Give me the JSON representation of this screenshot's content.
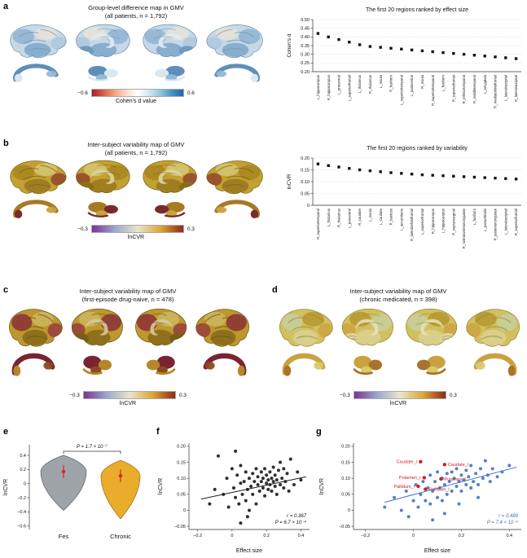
{
  "figure": {
    "background": "#ffffff"
  },
  "panels": {
    "a": {
      "label": "a",
      "title": "Group-level difference map in GMV",
      "subtitle": "(all patients, n = 1,792)",
      "colorbar": {
        "min_label": "−0.6",
        "max_label": "0.6",
        "caption": "Cohen's d value",
        "gradient": [
          "#b2182b",
          "#d6604d",
          "#f4a582",
          "#fddbc7",
          "#ffffff",
          "#d1e5f0",
          "#92c5de",
          "#4393c3",
          "#2166ac"
        ]
      },
      "palette": {
        "b1": "#c6d8e6",
        "b2": "#8fb4d2",
        "b3": "#e8e4d9",
        "b4": "#6d9cc4",
        "b5": "#a9c6db",
        "edge": "#5c7f9e",
        "sulci": "#7595ad",
        "cc": "#e4ecf3",
        "s1": "#5d8fba",
        "s2": "#dbe7f0",
        "s3": "#94b9d6"
      }
    },
    "b": {
      "label": "b",
      "title": "Inter-subject variability map of GMV",
      "subtitle": "(all patients, n = 1,792)",
      "colorbar": {
        "min_label": "−0.3",
        "max_label": "0.3",
        "caption": "lnCVR",
        "gradient": [
          "#7b3294",
          "#9aa7cf",
          "#e9e5c9",
          "#dfa53a",
          "#8c2d14"
        ]
      },
      "palette": {
        "b1": "#c2a032",
        "b2": "#a8861f",
        "b3": "#d6c878",
        "b4": "#8f6f1a",
        "b5": "#8c3b2a",
        "edge": "#6b5512",
        "sulci": "#7a611a",
        "cc": "#ddd5a2",
        "s1": "#a87a22",
        "s2": "#7a2a2a",
        "s3": "#c9a23f"
      }
    },
    "c": {
      "label": "c",
      "title": "Inter-subject variability map of GMV",
      "subtitle": "(first-episode drug-naive, n = 478)",
      "colorbar": {
        "min_label": "−0.3",
        "max_label": "0.3",
        "caption": "lnCVR",
        "gradient": [
          "#7b3294",
          "#9aa7cf",
          "#e9e5c9",
          "#dfa53a",
          "#8c2d14"
        ]
      },
      "palette": {
        "b1": "#bd982c",
        "b2": "#8c2f3b",
        "b3": "#cdb964",
        "b4": "#7a5f15",
        "b5": "#94313f",
        "edge": "#5f4a10",
        "sulci": "#6b5512",
        "cc": "#d6c89a",
        "s1": "#7a2433",
        "s2": "#b5862a",
        "s3": "#8c4a1f"
      }
    },
    "d": {
      "label": "d",
      "title": "Inter-subject variability map of GMV",
      "subtitle": "(chronic medicated, n = 398)",
      "colorbar": {
        "min_label": "−0.3",
        "max_label": "0.3",
        "caption": "lnCVR",
        "gradient": [
          "#7b3294",
          "#9aa7cf",
          "#e9e5c9",
          "#dfa53a",
          "#8c2d14"
        ]
      },
      "palette": {
        "b1": "#d2c05e",
        "b2": "#c6cf9e",
        "b3": "#b5942e",
        "b4": "#ddd49e",
        "b5": "#c9a23f",
        "edge": "#8a7a2e",
        "sulci": "#9a8a3a",
        "cc": "#e6e0b4",
        "s1": "#c9a23f",
        "s2": "#a8742a",
        "s3": "#d8c96a"
      }
    },
    "e": {
      "label": "e"
    },
    "f": {
      "label": "f"
    },
    "g": {
      "label": "g"
    }
  },
  "chart_data": [
    {
      "id": "a_rank",
      "type": "scatter",
      "marker": "square",
      "title": "The first 20 regions ranked by effect size",
      "ylabel": "Cohen's d",
      "ylim": [
        0.2,
        0.5
      ],
      "yticks": [
        0.2,
        0.25,
        0.3,
        0.35,
        0.4,
        0.45,
        0.5
      ],
      "grid": true,
      "point_color": "#141414",
      "categories": [
        "L_hippocampus",
        "R_hippocampus",
        "L_precentral",
        "L_superiorfrontal",
        "L_thalamus",
        "R_thalamus",
        "L_insula",
        "R_fusiform",
        "L_superiortemporal",
        "L_postcentral",
        "R_insula",
        "R_superiortemporal",
        "L_fusiform",
        "R_superiorfrontal",
        "R_inferiortemporal",
        "R_middletemporal",
        "L_amygdala",
        "R_medialorbitofrontal",
        "L_lateraloccipital",
        "R_lateraloccipital"
      ],
      "values": [
        0.42,
        0.4,
        0.385,
        0.37,
        0.355,
        0.345,
        0.34,
        0.335,
        0.33,
        0.325,
        0.32,
        0.315,
        0.31,
        0.305,
        0.3,
        0.295,
        0.29,
        0.285,
        0.28,
        0.275
      ]
    },
    {
      "id": "b_rank",
      "type": "scatter",
      "marker": "square",
      "title": "The first 20 regions ranked by variability",
      "ylabel": "lnCVR",
      "ylim": [
        0,
        0.2
      ],
      "yticks": [
        0,
        0.05,
        0.1,
        0.15,
        0.2
      ],
      "grid": true,
      "point_color": "#141414",
      "categories": [
        "R_superiortemporal",
        "L_thalamus",
        "R_thalamus",
        "L_precentral",
        "R_caudate",
        "L_insula",
        "L_caudate",
        "R_banksts",
        "L_accumbens",
        "R_lateralorbitofrontal",
        "L_superiorfrontal",
        "R_hippocampus",
        "L_hippocampus",
        "R_supramarginal",
        "R_rostralanteriorcingulate",
        "L_fusiform",
        "L_parsorbitalis",
        "R_posteriorcingulate",
        "L_lateraloccipital",
        "R_superiorfrontal"
      ],
      "values": [
        0.175,
        0.168,
        0.162,
        0.156,
        0.15,
        0.146,
        0.142,
        0.138,
        0.135,
        0.132,
        0.129,
        0.127,
        0.125,
        0.123,
        0.121,
        0.119,
        0.117,
        0.115,
        0.113,
        0.111
      ]
    },
    {
      "id": "e_violin",
      "type": "violin",
      "ylabel": "lnCVR",
      "ylim": [
        -0.65,
        0.55
      ],
      "yticks": [
        0.4,
        0.2,
        0,
        -0.2,
        -0.4,
        -0.6
      ],
      "p_label": "P = 1.7 × 10⁻⁷",
      "groups": [
        {
          "label": "Fes",
          "color": "#9aa0a6",
          "edge": "#555555",
          "y_top": 0.4,
          "y_bottom": -0.38,
          "y_peak": 0.17,
          "mean": 0.17,
          "err": 0.09
        },
        {
          "label": "Chronic",
          "color": "#e8a820",
          "edge": "#8a6a10",
          "y_top": 0.33,
          "y_bottom": -0.5,
          "y_peak": 0.11,
          "mean": 0.11,
          "err": 0.09
        }
      ],
      "mean_color": "#d62728"
    },
    {
      "id": "f_scatter",
      "type": "scatter",
      "xlabel": "Effect size",
      "ylabel": "lnCVR",
      "xlim": [
        -0.25,
        0.45
      ],
      "ylim": [
        -0.06,
        0.21
      ],
      "xticks": [
        -0.2,
        0,
        0.2,
        0.4
      ],
      "yticks": [
        -0.05,
        0,
        0.05,
        0.1,
        0.15,
        0.2
      ],
      "r_label": "r = 0.367",
      "p_label": "P = 6.7 × 10⁻⁴",
      "accent": "#111111",
      "point_color": "#1a1a1a",
      "line": {
        "x1": -0.18,
        "y1": 0.035,
        "x2": 0.43,
        "y2": 0.105,
        "color": "#1a1a1a"
      },
      "points": [
        [
          -0.13,
          0.02
        ],
        [
          -0.1,
          0.065
        ],
        [
          -0.08,
          0.17
        ],
        [
          -0.05,
          0.05
        ],
        [
          -0.03,
          0.1
        ],
        [
          -0.02,
          0.01
        ],
        [
          0.0,
          0.13
        ],
        [
          0.01,
          0.07
        ],
        [
          0.02,
          0.04
        ],
        [
          0.02,
          0.185
        ],
        [
          0.03,
          0.11
        ],
        [
          0.04,
          0.02
        ],
        [
          0.05,
          0.085
        ],
        [
          0.05,
          0.14
        ],
        [
          0.06,
          0.05
        ],
        [
          0.07,
          0.09
        ],
        [
          0.08,
          0.03
        ],
        [
          0.08,
          0.12
        ],
        [
          0.09,
          0.065
        ],
        [
          0.1,
          0.1
        ],
        [
          0.1,
          0.0
        ],
        [
          0.11,
          0.075
        ],
        [
          0.12,
          0.115
        ],
        [
          0.12,
          0.05
        ],
        [
          0.13,
          0.09
        ],
        [
          0.14,
          0.13
        ],
        [
          0.14,
          0.02
        ],
        [
          0.15,
          0.08
        ],
        [
          0.15,
          0.105
        ],
        [
          0.16,
          0.06
        ],
        [
          0.17,
          0.09
        ],
        [
          0.17,
          0.12
        ],
        [
          0.18,
          0.07
        ],
        [
          0.18,
          0.1
        ],
        [
          0.19,
          0.045
        ],
        [
          0.19,
          0.13
        ],
        [
          0.2,
          0.085
        ],
        [
          0.2,
          0.11
        ],
        [
          0.21,
          0.065
        ],
        [
          0.21,
          0.095
        ],
        [
          0.22,
          0.12
        ],
        [
          0.22,
          0.08
        ],
        [
          0.23,
          0.1
        ],
        [
          0.23,
          0.06
        ],
        [
          0.24,
          0.135
        ],
        [
          0.24,
          0.09
        ],
        [
          0.25,
          0.075
        ],
        [
          0.25,
          0.11
        ],
        [
          0.26,
          0.05
        ],
        [
          0.26,
          0.095
        ],
        [
          0.27,
          0.125
        ],
        [
          0.28,
          0.08
        ],
        [
          0.28,
          0.15
        ],
        [
          0.29,
          0.1
        ],
        [
          0.3,
          0.07
        ],
        [
          0.3,
          0.13
        ],
        [
          0.31,
          0.09
        ],
        [
          0.32,
          0.115
        ],
        [
          0.33,
          0.06
        ],
        [
          0.34,
          0.16
        ],
        [
          0.36,
          0.08
        ],
        [
          0.38,
          0.12
        ],
        [
          0.4,
          0.095
        ],
        [
          0.05,
          -0.04
        ],
        [
          0.09,
          -0.02
        ]
      ]
    },
    {
      "id": "g_scatter",
      "type": "scatter",
      "xlabel": "Effect size",
      "ylabel": "lnCVR",
      "xlim": [
        -0.25,
        0.45
      ],
      "ylim": [
        -0.06,
        0.21
      ],
      "xticks": [
        -0.2,
        0,
        0.2,
        0.4
      ],
      "yticks": [
        -0.05,
        0,
        0.05,
        0.1,
        0.15,
        0.2
      ],
      "r_label": "r = 0.489",
      "p_label": "P = 7.4 × 10⁻⁶",
      "accent": "#4472c4",
      "point_color": "#4472c4",
      "red_color": "#cc2222",
      "line": {
        "x1": -0.12,
        "y1": 0.025,
        "x2": 0.43,
        "y2": 0.135,
        "color": "#4472c4"
      },
      "points": [
        [
          -0.12,
          0.01
        ],
        [
          -0.08,
          0.04
        ],
        [
          -0.05,
          0.0
        ],
        [
          -0.03,
          0.06
        ],
        [
          -0.02,
          -0.02
        ],
        [
          0.0,
          0.03
        ],
        [
          0.01,
          0.08
        ],
        [
          0.02,
          0.01
        ],
        [
          0.03,
          0.05
        ],
        [
          0.04,
          0.09
        ],
        [
          0.05,
          0.03
        ],
        [
          0.06,
          0.07
        ],
        [
          0.07,
          0.11
        ],
        [
          0.07,
          0.02
        ],
        [
          0.08,
          0.06
        ],
        [
          0.09,
          0.09
        ],
        [
          0.1,
          0.04
        ],
        [
          0.1,
          0.12
        ],
        [
          0.11,
          0.07
        ],
        [
          0.12,
          0.1
        ],
        [
          0.12,
          0.03
        ],
        [
          0.13,
          0.08
        ],
        [
          0.14,
          0.115
        ],
        [
          0.14,
          0.05
        ],
        [
          0.15,
          0.09
        ],
        [
          0.16,
          0.12
        ],
        [
          0.16,
          0.06
        ],
        [
          0.17,
          0.1
        ],
        [
          0.18,
          0.075
        ],
        [
          0.18,
          0.13
        ],
        [
          0.19,
          0.09
        ],
        [
          0.2,
          0.11
        ],
        [
          0.2,
          0.06
        ],
        [
          0.21,
          0.095
        ],
        [
          0.22,
          0.125
        ],
        [
          0.22,
          0.08
        ],
        [
          0.23,
          0.105
        ],
        [
          0.24,
          0.07
        ],
        [
          0.24,
          0.14
        ],
        [
          0.25,
          0.09
        ],
        [
          0.26,
          0.115
        ],
        [
          0.27,
          0.08
        ],
        [
          0.28,
          0.13
        ],
        [
          0.29,
          0.1
        ],
        [
          0.3,
          0.155
        ],
        [
          0.31,
          0.11
        ],
        [
          0.32,
          0.09
        ],
        [
          0.33,
          0.13
        ],
        [
          0.35,
          0.105
        ],
        [
          0.37,
          0.12
        ],
        [
          0.4,
          0.14
        ],
        [
          0.08,
          -0.03
        ],
        [
          0.13,
          -0.01
        ],
        [
          0.19,
          0.02
        ],
        [
          0.27,
          0.04
        ]
      ],
      "red_points": [
        {
          "label": "Caudate_r",
          "x": 0.03,
          "y": 0.152,
          "side": "left"
        },
        {
          "label": "Caudate_l",
          "x": 0.13,
          "y": 0.143,
          "side": "right"
        },
        {
          "label": "Putamen_r",
          "x": 0.045,
          "y": 0.102,
          "side": "left"
        },
        {
          "label": "Putamen_l",
          "x": 0.115,
          "y": 0.098,
          "side": "right"
        },
        {
          "label": "Pallidum_r",
          "x": 0.02,
          "y": 0.075,
          "side": "left"
        },
        {
          "label": "Pallidum_l",
          "x": 0.05,
          "y": 0.066,
          "side": "right"
        }
      ]
    }
  ]
}
